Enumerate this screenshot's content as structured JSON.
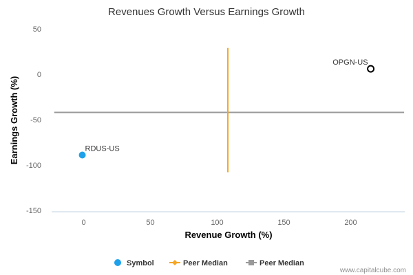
{
  "chart_data": {
    "type": "scatter",
    "title": "Revenues Growth Versus Earnings Growth",
    "xlabel": "Revenue Growth (%)",
    "ylabel": "Earnings Growth (%)",
    "xlim": [
      -25,
      240
    ],
    "ylim": [
      -150,
      50
    ],
    "x_ticks": [
      0,
      50,
      100,
      150,
      200
    ],
    "y_ticks": [
      50,
      0,
      -50,
      -100,
      -150
    ],
    "grid": false,
    "legend_position": "bottom-center",
    "points": [
      {
        "label": "RDUS-US",
        "x": -1,
        "y": -89,
        "style": "filled",
        "color": "#1ea1ea"
      },
      {
        "label": "OPGN-US",
        "x": 215,
        "y": 6,
        "style": "hollow",
        "color": "#000000"
      }
    ],
    "peer_median_revenue": {
      "x": 108,
      "y_range": [
        -108,
        29
      ],
      "color": "#f5a623"
    },
    "peer_median_earnings": {
      "y": -42,
      "x_range": [
        -22,
        240
      ],
      "color": "#999999"
    },
    "legend": [
      {
        "label": "Symbol",
        "marker": "circle",
        "color": "#1ea1ea"
      },
      {
        "label": "Peer Median",
        "marker": "diamond",
        "color": "#f5a623"
      },
      {
        "label": "Peer Median",
        "marker": "square",
        "color": "#999999"
      }
    ]
  },
  "footer": {
    "credit": "www.capitalcube.com"
  }
}
